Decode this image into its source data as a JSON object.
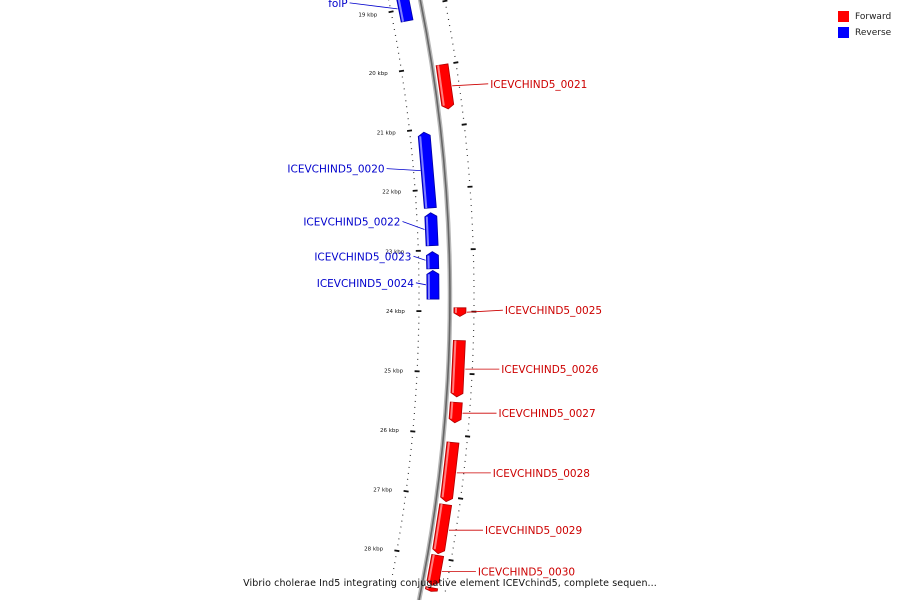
{
  "legend": {
    "forward": {
      "label": "Forward",
      "color": "#ff0000"
    },
    "reverse": {
      "label": "Reverse",
      "color": "#0000ff"
    }
  },
  "caption": "Vibrio cholerae Ind5 integrating conjugative element ICEVchind5, complete sequen...",
  "map": {
    "start_kbp": 18.75,
    "end_kbp": 28.55,
    "ticks_kbp": [
      19,
      20,
      21,
      22,
      23,
      24,
      25,
      26,
      27,
      28
    ],
    "tick_suffix": " kbp",
    "genes": [
      {
        "name": "folP",
        "start": 18.75,
        "end": 19.2,
        "strand": "reverse"
      },
      {
        "name": "ICEVCHIND5_0021",
        "start": 20.0,
        "end": 20.72,
        "strand": "forward"
      },
      {
        "name": "ICEVCHIND5_0020",
        "start": 21.05,
        "end": 22.3,
        "strand": "reverse"
      },
      {
        "name": "ICEVCHIND5_0022",
        "start": 22.38,
        "end": 22.92,
        "strand": "reverse"
      },
      {
        "name": "ICEVCHIND5_0023",
        "start": 23.02,
        "end": 23.3,
        "strand": "reverse"
      },
      {
        "name": "ICEVCHIND5_0024",
        "start": 23.33,
        "end": 23.8,
        "strand": "reverse"
      },
      {
        "name": "ICEVCHIND5_0025",
        "start": 23.94,
        "end": 24.08,
        "strand": "forward"
      },
      {
        "name": "ICEVCHIND5_0026",
        "start": 24.47,
        "end": 25.38,
        "strand": "forward"
      },
      {
        "name": "ICEVCHIND5_0027",
        "start": 25.47,
        "end": 25.8,
        "strand": "forward"
      },
      {
        "name": "ICEVCHIND5_0028",
        "start": 26.12,
        "end": 27.08,
        "strand": "forward"
      },
      {
        "name": "ICEVCHIND5_0029",
        "start": 27.13,
        "end": 27.93,
        "strand": "forward"
      },
      {
        "name": "ICEVCHIND5_0030",
        "start": 27.96,
        "end": 28.45,
        "strand": "forward"
      },
      {
        "name": "",
        "start": 28.49,
        "end": 28.55,
        "strand": "forward"
      }
    ]
  }
}
